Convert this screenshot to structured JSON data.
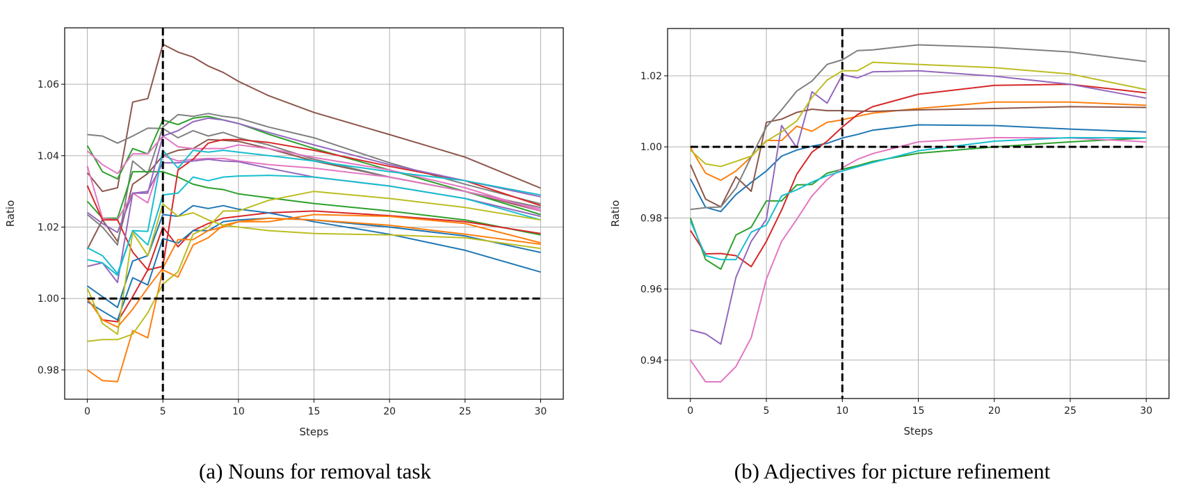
{
  "chart_data": [
    {
      "type": "line",
      "caption": "(a) Nouns for removal task",
      "xlabel": "Steps",
      "ylabel": "Ratio",
      "xlim": [
        -1.5,
        31.5
      ],
      "ylim": [
        0.9718,
        1.0758
      ],
      "xticks": [
        "0",
        "5",
        "10",
        "15",
        "20",
        "25",
        "30"
      ],
      "yticks": [
        "0.98",
        "1.00",
        "1.02",
        "1.04",
        "1.06"
      ],
      "grid": true,
      "reference_lines": {
        "x": 5,
        "y": 1.0
      },
      "x": [
        0,
        1,
        2,
        3,
        4,
        5,
        6,
        7,
        8,
        9,
        10,
        12,
        15,
        20,
        25,
        30
      ],
      "series": [
        {
          "color": "#8c564b",
          "values": [
            1.0352,
            1.03,
            1.031,
            1.055,
            1.056,
            1.0712,
            1.069,
            1.0676,
            1.0651,
            1.0633,
            1.0608,
            1.0568,
            1.0521,
            1.0459,
            1.0396,
            1.0309
          ]
        },
        {
          "color": "#8c564b",
          "values": [
            1.0138,
            1.022,
            1.016,
            1.032,
            1.035,
            1.04,
            1.0415,
            1.042,
            1.0445,
            1.0443,
            1.044,
            1.042,
            1.0385,
            1.034,
            1.03,
            1.0245
          ]
        },
        {
          "color": "#7f7f7f",
          "values": [
            1.0459,
            1.0455,
            1.0435,
            1.0455,
            1.0477,
            1.0476,
            1.045,
            1.047,
            1.0455,
            1.0465,
            1.045,
            1.043,
            1.039,
            1.034,
            1.03,
            1.0255
          ]
        },
        {
          "color": "#7f7f7f",
          "values": [
            1.0235,
            1.02,
            1.015,
            1.0385,
            1.035,
            1.048,
            1.0515,
            1.051,
            1.0518,
            1.051,
            1.0505,
            1.048,
            1.045,
            1.038,
            1.032,
            1.0265
          ]
        },
        {
          "color": "#2ca02c",
          "values": [
            1.0428,
            1.0355,
            1.0335,
            1.042,
            1.0405,
            1.05,
            1.0487,
            1.0505,
            1.051,
            1.05,
            1.049,
            1.046,
            1.042,
            1.036,
            1.03,
            1.0235
          ]
        },
        {
          "color": "#2ca02c",
          "values": [
            1.0272,
            1.0225,
            1.0225,
            1.0355,
            1.0355,
            1.0355,
            1.034,
            1.032,
            1.031,
            1.0305,
            1.0293,
            1.0282,
            1.0266,
            1.0245,
            1.022,
            1.0178
          ]
        },
        {
          "color": "#e377c2",
          "values": [
            1.0413,
            1.0375,
            1.035,
            1.0405,
            1.0405,
            1.0455,
            1.0425,
            1.042,
            1.042,
            1.042,
            1.043,
            1.042,
            1.0395,
            1.036,
            1.031,
            1.0245
          ]
        },
        {
          "color": "#e377c2",
          "values": [
            1.0371,
            1.0225,
            1.022,
            1.0295,
            1.0268,
            1.04,
            1.0385,
            1.039,
            1.0392,
            1.0392,
            1.0385,
            1.0375,
            1.0365,
            1.034,
            1.03,
            1.025
          ]
        },
        {
          "color": "#d62728",
          "values": [
            1.0316,
            1.022,
            1.022,
            1.013,
            1.008,
            1.009,
            1.036,
            1.039,
            1.0435,
            1.0445,
            1.0445,
            1.0437,
            1.0415,
            1.037,
            1.033,
            1.026
          ]
        },
        {
          "color": "#d62728",
          "values": [
            1.0,
            0.994,
            0.9935,
            1.0005,
            1.008,
            1.02,
            1.0145,
            1.019,
            1.021,
            1.0225,
            1.023,
            1.024,
            1.0245,
            1.0232,
            1.0215,
            1.0182
          ]
        },
        {
          "color": "#9467bd",
          "values": [
            1.0241,
            1.021,
            1.0185,
            1.0295,
            1.0295,
            1.0455,
            1.047,
            1.0495,
            1.0505,
            1.05,
            1.049,
            1.0465,
            1.043,
            1.0375,
            1.033,
            1.0285
          ]
        },
        {
          "color": "#9467bd",
          "values": [
            1.009,
            1.01,
            1.0045,
            1.0295,
            1.03,
            1.038,
            1.038,
            1.0385,
            1.039,
            1.0385,
            1.0383,
            1.0365,
            1.034,
            1.0315,
            1.028,
            1.023
          ]
        },
        {
          "color": "#17becf",
          "values": [
            1.0142,
            1.012,
            1.007,
            1.019,
            1.0188,
            1.0415,
            1.0365,
            1.0415,
            1.041,
            1.0415,
            1.041,
            1.04,
            1.0385,
            1.0355,
            1.033,
            1.029
          ]
        },
        {
          "color": "#17becf",
          "values": [
            1.0109,
            1.01,
            1.0065,
            1.019,
            1.015,
            1.029,
            1.0295,
            1.034,
            1.033,
            1.034,
            1.0343,
            1.0345,
            1.034,
            1.0315,
            1.028,
            1.022
          ]
        },
        {
          "color": "#1f77b4",
          "values": [
            1.0035,
            1.0005,
            0.9975,
            1.0105,
            1.012,
            1.0235,
            1.023,
            1.026,
            1.0252,
            1.026,
            1.025,
            1.024,
            1.0215,
            1.018,
            1.0135,
            1.0074
          ]
        },
        {
          "color": "#1f77b4",
          "values": [
            0.9991,
            0.9965,
            0.994,
            1.0058,
            1.0038,
            1.0168,
            1.0155,
            1.019,
            1.019,
            1.0215,
            1.022,
            1.0225,
            1.022,
            1.02,
            1.0175,
            1.0129
          ]
        },
        {
          "color": "#ff7f0e",
          "values": [
            1.0,
            0.994,
            0.992,
            0.997,
            1.003,
            1.0085,
            1.0165,
            1.0165,
            1.019,
            1.02,
            1.0215,
            1.0215,
            1.0235,
            1.023,
            1.021,
            1.0156
          ]
        },
        {
          "color": "#ff7f0e",
          "values": [
            0.98,
            0.977,
            0.9767,
            0.991,
            0.989,
            1.008,
            1.006,
            1.015,
            1.017,
            1.0205,
            1.0215,
            1.0225,
            1.022,
            1.0205,
            1.018,
            1.0152
          ]
        },
        {
          "color": "#bcbd22",
          "values": [
            1.0028,
            0.993,
            0.99,
            1.0185,
            1.012,
            1.0265,
            1.023,
            1.024,
            1.022,
            1.0205,
            1.02,
            1.019,
            1.0182,
            1.0178,
            1.017,
            1.014
          ]
        },
        {
          "color": "#bcbd22",
          "values": [
            0.988,
            0.9885,
            0.9885,
            0.99,
            0.996,
            1.004,
            1.0075,
            1.018,
            1.02,
            1.0245,
            1.0245,
            1.0275,
            1.03,
            1.028,
            1.0255,
            1.022
          ]
        }
      ]
    },
    {
      "type": "line",
      "caption": "(b) Adjectives for picture refinement",
      "xlabel": "Steps",
      "ylabel": "Ratio",
      "xlim": [
        -1.5,
        31.5
      ],
      "ylim": [
        0.9292,
        1.0333
      ],
      "xticks": [
        "0",
        "5",
        "10",
        "15",
        "20",
        "25",
        "30"
      ],
      "yticks": [
        "0.94",
        "0.96",
        "0.98",
        "1.00",
        "1.02"
      ],
      "grid": true,
      "reference_lines": {
        "x": 10,
        "y": 1.0
      },
      "x": [
        0,
        1,
        2,
        3,
        4,
        5,
        6,
        7,
        8,
        9,
        10,
        11,
        12,
        15,
        20,
        25,
        30
      ],
      "series": [
        {
          "color": "#1f77b4",
          "values": [
            0.991,
            0.983,
            0.9818,
            0.9866,
            0.99,
            0.9932,
            0.9974,
            0.9991,
            1.0002,
            1.001,
            1.0025,
            1.0035,
            1.0047,
            1.0062,
            1.006,
            1.005,
            1.0042
          ]
        },
        {
          "color": "#ff7f0e",
          "values": [
            0.9998,
            0.9926,
            0.9906,
            0.9932,
            0.9972,
            1.0018,
            1.0018,
            1.0058,
            1.0044,
            1.0069,
            1.0076,
            1.0086,
            1.0095,
            1.0108,
            1.0126,
            1.0126,
            1.0117
          ]
        },
        {
          "color": "#2ca02c",
          "values": [
            0.98,
            0.9683,
            0.9656,
            0.9752,
            0.9774,
            0.9848,
            0.9848,
            0.9893,
            0.9894,
            0.9926,
            0.9937,
            0.9947,
            0.9959,
            0.9982,
            1.0,
            1.0014,
            1.0025
          ]
        },
        {
          "color": "#d62728",
          "values": [
            0.9765,
            0.9699,
            0.97,
            0.9694,
            0.9663,
            0.9734,
            0.9822,
            0.9923,
            0.9985,
            1.0016,
            1.0056,
            1.0091,
            1.0113,
            1.0148,
            1.0173,
            1.0176,
            1.0152
          ]
        },
        {
          "color": "#9467bd",
          "values": [
            0.9485,
            0.9474,
            0.9445,
            0.9633,
            0.9734,
            0.9796,
            1.006,
            0.9998,
            1.0155,
            1.0123,
            1.0203,
            1.0194,
            1.0211,
            1.0214,
            1.0199,
            1.0176,
            1.0137
          ]
        },
        {
          "color": "#8c564b",
          "values": [
            0.995,
            0.9853,
            0.9831,
            0.9916,
            0.9875,
            1.0069,
            1.0078,
            1.0097,
            1.0106,
            1.0102,
            1.0102,
            1.0101,
            1.01,
            1.0104,
            1.0108,
            1.0113,
            1.0111
          ]
        },
        {
          "color": "#e377c2",
          "values": [
            0.94,
            0.9339,
            0.9339,
            0.9382,
            0.9463,
            0.9628,
            0.9734,
            0.9796,
            0.9862,
            0.9908,
            0.9941,
            0.9965,
            0.9981,
            1.0014,
            1.0026,
            1.0025,
            1.0014
          ]
        },
        {
          "color": "#7f7f7f",
          "values": [
            0.9824,
            0.9829,
            0.9831,
            0.9884,
            0.9972,
            1.0056,
            1.0104,
            1.0157,
            1.0185,
            1.0232,
            1.0245,
            1.0271,
            1.0273,
            1.0287,
            1.028,
            1.0267,
            1.024
          ]
        },
        {
          "color": "#bcbd22",
          "values": [
            0.9991,
            0.9952,
            0.9945,
            0.9959,
            0.9974,
            1.0016,
            1.0042,
            1.0073,
            1.0139,
            1.0188,
            1.0214,
            1.0214,
            1.0238,
            1.0232,
            1.0223,
            1.0205,
            1.0161
          ]
        },
        {
          "color": "#17becf",
          "values": [
            0.9791,
            0.9694,
            0.9683,
            0.9683,
            0.976,
            0.978,
            0.9862,
            0.9879,
            0.9901,
            0.9919,
            0.9932,
            0.9944,
            0.9956,
            0.9989,
            1.0016,
            1.0026,
            1.0025
          ]
        }
      ]
    }
  ]
}
